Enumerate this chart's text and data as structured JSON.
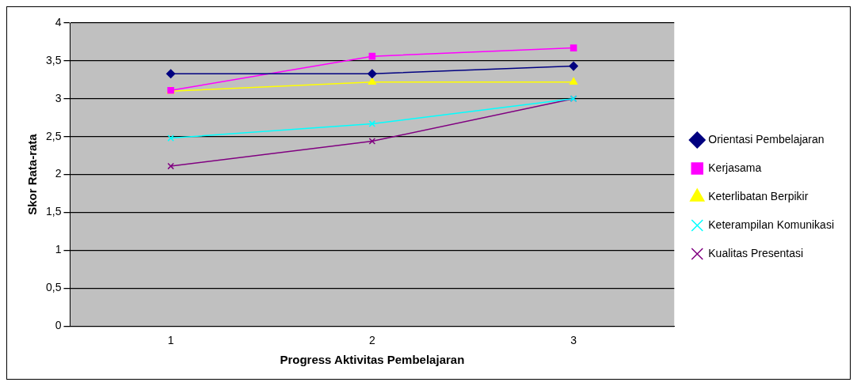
{
  "chart_data": {
    "type": "line",
    "xlabel": "Progress Aktivitas Pembelajaran",
    "ylabel": "Skor Rata-rata",
    "categories": [
      "1",
      "2",
      "3"
    ],
    "ylim": [
      0,
      4
    ],
    "yticks": [
      0,
      {
        "value": 0.5,
        "label": "0,5"
      },
      1,
      {
        "value": 1.5,
        "label": "1,5"
      },
      2,
      {
        "value": 2.5,
        "label": "2,5"
      },
      3,
      {
        "value": 3.5,
        "label": "3,5"
      },
      4
    ],
    "grid": "y",
    "legend": "right",
    "line_style": "solid",
    "series": [
      {
        "name": "Orientasi Pembelajaran",
        "color": "#000080",
        "marker": "diamond",
        "values": [
          3.33,
          3.33,
          3.43
        ]
      },
      {
        "name": "Kerjasama",
        "color": "#ff00ff",
        "marker": "square",
        "values": [
          3.11,
          3.56,
          3.67
        ]
      },
      {
        "name": "Keterlibatan Berpikir",
        "color": "#ffff00",
        "marker": "triangle",
        "values": [
          3.1,
          3.22,
          3.22
        ]
      },
      {
        "name": "Keterampilan Komunikasi",
        "color": "#00ffff",
        "marker": "cross",
        "values": [
          2.48,
          2.67,
          3.0
        ]
      },
      {
        "name": "Kualitas Presentasi",
        "color": "#800080",
        "marker": "cross",
        "values": [
          2.11,
          2.44,
          3.0
        ]
      }
    ]
  }
}
